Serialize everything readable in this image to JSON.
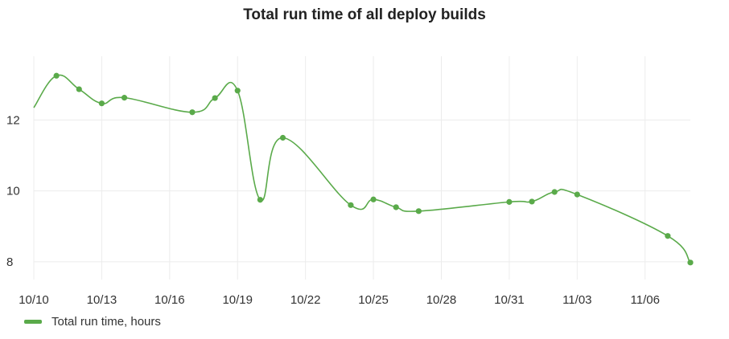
{
  "chart_data": {
    "type": "line",
    "title": "Total run time of all deploy builds",
    "xlabel": "",
    "ylabel": "",
    "x_ticks": [
      "10/10",
      "10/13",
      "10/16",
      "10/19",
      "10/22",
      "10/25",
      "10/28",
      "10/31",
      "11/03",
      "11/06"
    ],
    "y_ticks": [
      8,
      10,
      12
    ],
    "xlim": [
      "2023-10-10",
      "2023-11-08"
    ],
    "ylim": [
      7.5,
      13.8
    ],
    "grid": true,
    "legend_position": "bottom-left",
    "series": [
      {
        "name": "Total run time, hours",
        "color": "#5aaa4a",
        "points": [
          {
            "x": "2023-10-10",
            "y": 12.35,
            "marker": false
          },
          {
            "x": "2023-10-11",
            "y": 13.25
          },
          {
            "x": "2023-10-12",
            "y": 12.87
          },
          {
            "x": "2023-10-13",
            "y": 12.47
          },
          {
            "x": "2023-10-14",
            "y": 12.63
          },
          {
            "x": "2023-10-17",
            "y": 12.22
          },
          {
            "x": "2023-10-18",
            "y": 12.62
          },
          {
            "x": "2023-10-19",
            "y": 12.83
          },
          {
            "x": "2023-10-20",
            "y": 9.75
          },
          {
            "x": "2023-10-21",
            "y": 11.5
          },
          {
            "x": "2023-10-24",
            "y": 9.6
          },
          {
            "x": "2023-10-25",
            "y": 9.76
          },
          {
            "x": "2023-10-26",
            "y": 9.54
          },
          {
            "x": "2023-10-27",
            "y": 9.43
          },
          {
            "x": "2023-10-31",
            "y": 9.69
          },
          {
            "x": "2023-11-01",
            "y": 9.7
          },
          {
            "x": "2023-11-02",
            "y": 9.97
          },
          {
            "x": "2023-11-03",
            "y": 9.9
          },
          {
            "x": "2023-11-07",
            "y": 8.73
          },
          {
            "x": "2023-11-08",
            "y": 7.98
          }
        ]
      }
    ]
  }
}
